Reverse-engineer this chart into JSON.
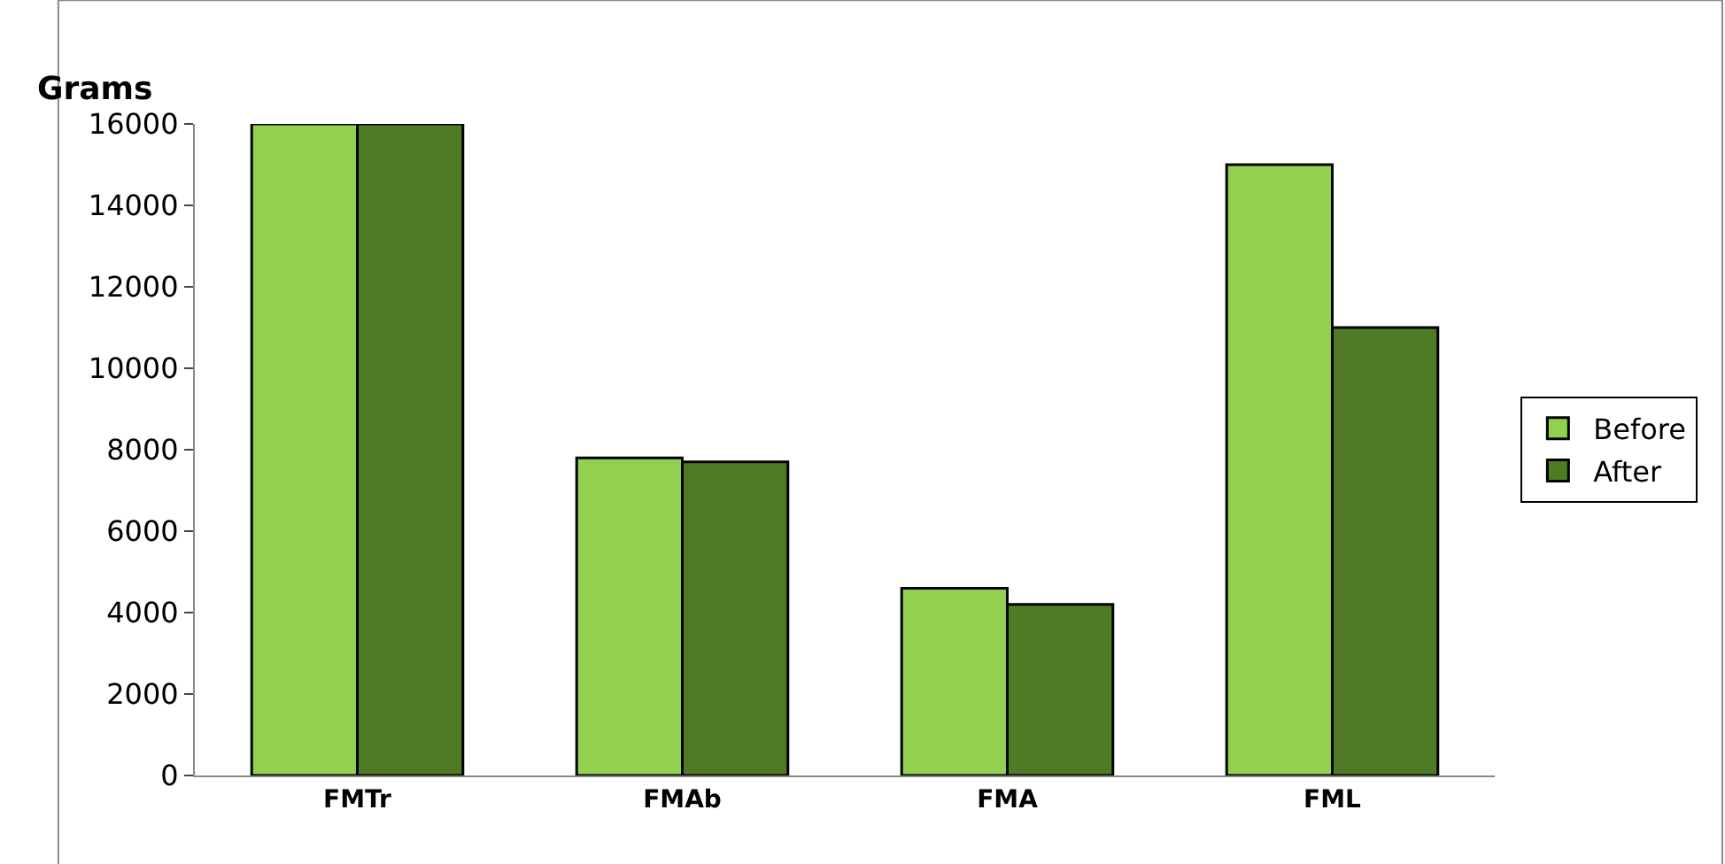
{
  "chart_data": {
    "type": "bar",
    "ylabel": "Grams",
    "categories": [
      "FMTr",
      "FMAb",
      "FMA",
      "FML"
    ],
    "series": [
      {
        "name": "Before",
        "color": "#92d050",
        "values": [
          16000,
          7800,
          4600,
          15000
        ]
      },
      {
        "name": "After",
        "color": "#4f7b24",
        "values": [
          16000,
          7700,
          4200,
          11000
        ]
      }
    ],
    "ylim": [
      0,
      16000
    ],
    "yticks": [
      0,
      2000,
      4000,
      6000,
      8000,
      10000,
      12000,
      14000,
      16000
    ],
    "grid": false,
    "legend": "right"
  }
}
